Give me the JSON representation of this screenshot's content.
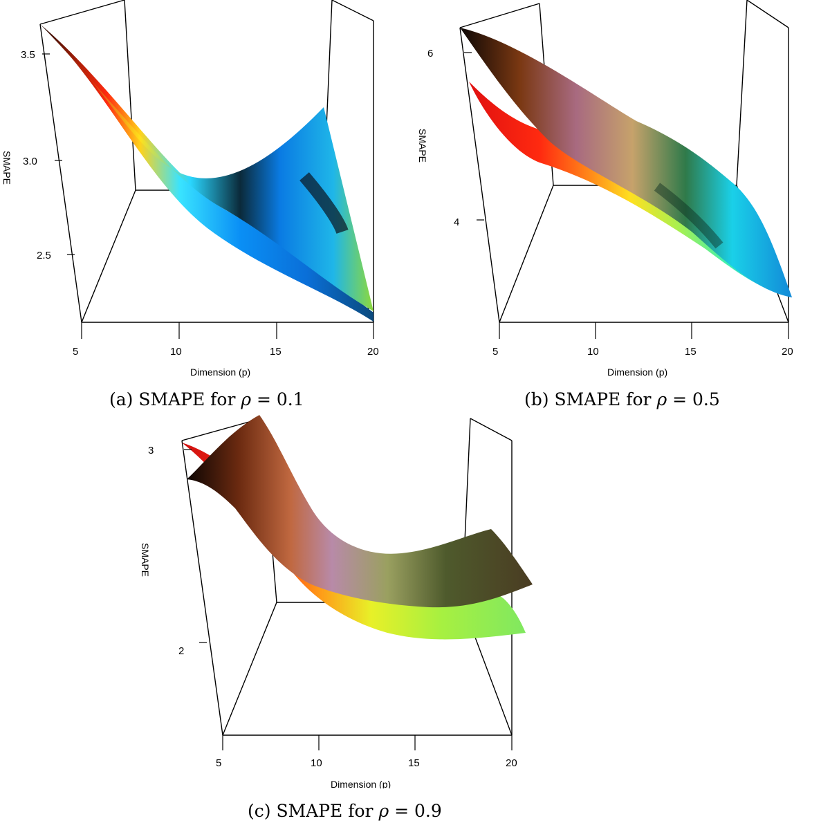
{
  "chart_data": [
    {
      "id": "a",
      "type": "surface3d",
      "caption_prefix": "(a) SMAPE for ",
      "caption_symbol": "ρ",
      "caption_suffix": " = 0.1",
      "xlabel": "Dimension (p)",
      "ylabel": "SMAPE",
      "x_ticks": [
        "5",
        "10",
        "15",
        "20"
      ],
      "z_ticks": [
        "2.5",
        "3.0",
        "3.5"
      ],
      "xlim": [
        5,
        20
      ],
      "zlim": [
        2.2,
        3.65
      ],
      "series": [
        {
          "x": [
            5,
            7.5,
            10,
            12.5,
            15,
            17.5,
            20
          ],
          "z": [
            3.62,
            3.28,
            2.82,
            2.52,
            2.38,
            2.28,
            2.2
          ]
        },
        {
          "x": [
            5,
            7.5,
            10,
            12.5,
            15,
            17.5,
            20
          ],
          "z": [
            3.62,
            3.25,
            2.9,
            2.74,
            2.82,
            3.02,
            3.2
          ]
        }
      ]
    },
    {
      "id": "b",
      "type": "surface3d",
      "caption_prefix": "(b) SMAPE for ",
      "caption_symbol": "ρ",
      "caption_suffix": " = 0.5",
      "xlabel": "Dimension (p)",
      "ylabel": "SMAPE",
      "x_ticks": [
        "5",
        "10",
        "15",
        "20"
      ],
      "z_ticks": [
        "4",
        "6"
      ],
      "xlim": [
        5,
        20
      ],
      "zlim": [
        3.1,
        6.2
      ],
      "series": [
        {
          "x": [
            5,
            7.5,
            10,
            12.5,
            15,
            17.5,
            20
          ],
          "z": [
            6.2,
            5.7,
            5.25,
            4.85,
            4.45,
            4.05,
            3.2
          ]
        },
        {
          "x": [
            5,
            7.5,
            10,
            12.5,
            15,
            17.5,
            20
          ],
          "z": [
            5.55,
            5.2,
            4.85,
            4.5,
            4.15,
            3.75,
            3.2
          ]
        }
      ]
    },
    {
      "id": "c",
      "type": "surface3d",
      "caption_prefix": "(c) SMAPE for ",
      "caption_symbol": "ρ",
      "caption_suffix": " = 0.9",
      "xlabel": "Dimension (p)",
      "ylabel": "SMAPE",
      "x_ticks": [
        "5",
        "10",
        "15",
        "20"
      ],
      "z_ticks": [
        "2",
        "3"
      ],
      "xlim": [
        5,
        20
      ],
      "zlim": [
        1.6,
        3.05
      ],
      "series": [
        {
          "x": [
            5,
            7.5,
            10,
            12.5,
            15,
            17.5,
            20
          ],
          "z": [
            3.05,
            2.85,
            2.45,
            2.3,
            2.28,
            2.38,
            2.45
          ]
        },
        {
          "x": [
            5,
            7.5,
            10,
            12.5,
            15,
            17.5,
            20
          ],
          "z": [
            2.9,
            2.6,
            2.2,
            2.02,
            1.98,
            2.03,
            2.12
          ]
        }
      ]
    }
  ]
}
